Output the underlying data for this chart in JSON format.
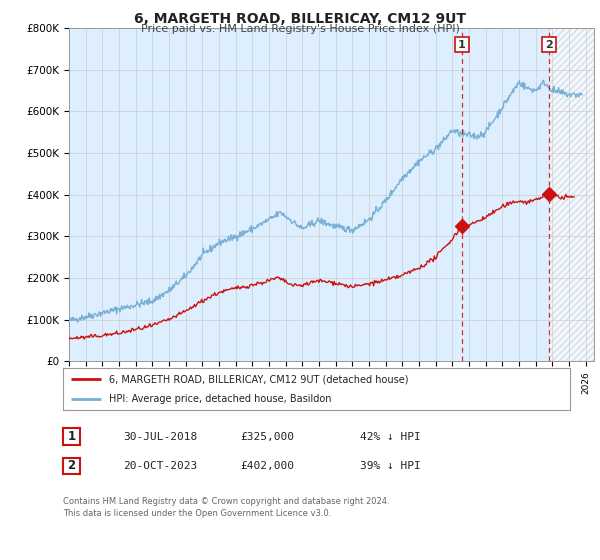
{
  "title": "6, MARGETH ROAD, BILLERICAY, CM12 9UT",
  "subtitle": "Price paid vs. HM Land Registry's House Price Index (HPI)",
  "ylim": [
    0,
    800000
  ],
  "xlim_start": 1995.0,
  "xlim_end": 2026.5,
  "hpi_color": "#7ab0d4",
  "price_color": "#cc1111",
  "bg_color": "#ddeeff",
  "highlight_bg": "#d0e8f8",
  "grid_color": "#cccccc",
  "sale1_date": 2018.58,
  "sale1_price": 325000,
  "sale2_date": 2023.8,
  "sale2_price": 402000,
  "legend_line1": "6, MARGETH ROAD, BILLERICAY, CM12 9UT (detached house)",
  "legend_line2": "HPI: Average price, detached house, Basildon",
  "table_row1_num": "1",
  "table_row1_date": "30-JUL-2018",
  "table_row1_price": "£325,000",
  "table_row1_hpi": "42% ↓ HPI",
  "table_row2_num": "2",
  "table_row2_date": "20-OCT-2023",
  "table_row2_price": "£402,000",
  "table_row2_hpi": "39% ↓ HPI",
  "footer1": "Contains HM Land Registry data © Crown copyright and database right 2024.",
  "footer2": "This data is licensed under the Open Government Licence v3.0.",
  "yticks": [
    0,
    100000,
    200000,
    300000,
    400000,
    500000,
    600000,
    700000,
    800000
  ],
  "ytick_labels": [
    "£0",
    "£100K",
    "£200K",
    "£300K",
    "£400K",
    "£500K",
    "£600K",
    "£700K",
    "£800K"
  ]
}
